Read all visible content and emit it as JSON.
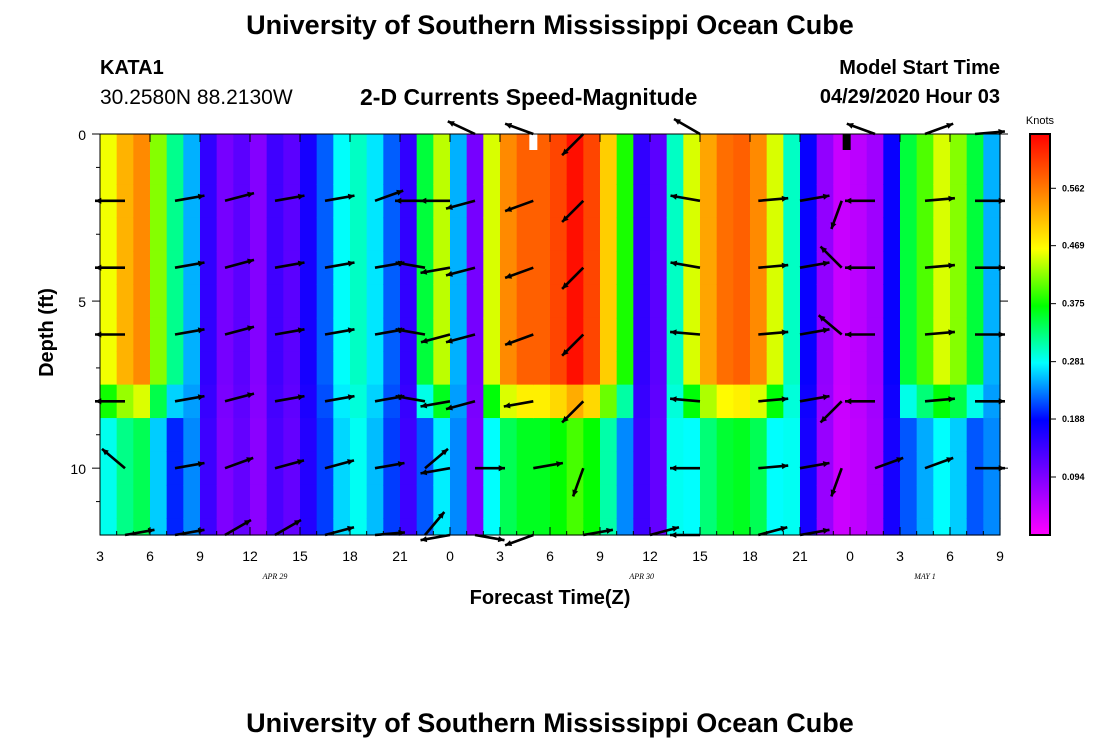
{
  "header": {
    "title": "University of Southern Mississippi Ocean Cube",
    "station_id": "KATA1",
    "station_coords": "30.2580N 88.2130W",
    "chart_title": "2-D Currents Speed-Magnitude",
    "model_label": "Model Start Time",
    "model_time": "04/29/2020 Hour 03"
  },
  "footer": {
    "title": "University of Southern Mississippi Ocean Cube"
  },
  "chart_data": {
    "type": "heatmap",
    "title": "2-D Currents Speed-Magnitude",
    "xlabel": "Forecast Time(Z)",
    "ylabel": "Depth (ft)",
    "x_ticks_hours": [
      0,
      3,
      6,
      9,
      12,
      15,
      18,
      21,
      24,
      27,
      30,
      33,
      36,
      39,
      42,
      45,
      48,
      51,
      54
    ],
    "x_tick_labels": [
      "3",
      "6",
      "9",
      "12",
      "15",
      "18",
      "21",
      "0",
      "3",
      "6",
      "9",
      "12",
      "15",
      "18",
      "21",
      "0",
      "3",
      "6",
      "9"
    ],
    "date_labels": [
      {
        "hour": 10.5,
        "text": "APR 29"
      },
      {
        "hour": 32.5,
        "text": "APR 30"
      },
      {
        "hour": 49.5,
        "text": "MAY 1"
      }
    ],
    "y_ticks": [
      0,
      5,
      10
    ],
    "y_tick_labels": [
      "0",
      "5",
      "10"
    ],
    "xlim_hours": [
      0,
      54
    ],
    "ylim_depth_ft": [
      0,
      12
    ],
    "colorbar": {
      "units": "Knots",
      "ticks": [
        0.094,
        0.188,
        0.281,
        0.375,
        0.469,
        0.562
      ],
      "tick_labels": [
        "0.094",
        "0.188",
        "0.281",
        "0.375",
        "0.469",
        "0.562"
      ],
      "range": [
        0.0,
        0.65
      ],
      "stops": [
        "#ff00ff",
        "#8000ff",
        "#0000ff",
        "#00ffff",
        "#00ff00",
        "#ffff00",
        "#ff8000",
        "#ff0000"
      ]
    },
    "depth_bin_edges_ft": [
      0,
      1.5,
      2.5,
      3.5,
      4.5,
      5.5,
      6.5,
      7.5,
      8.5,
      9.5,
      10.5,
      11.5,
      12
    ],
    "profile_rows": [
      {
        "top_ft": 0,
        "profile": [
          1.0,
          1.0,
          1.0,
          1.0,
          1.0,
          1.0,
          1.0,
          0.82,
          0.62,
          0.45
        ]
      },
      {
        "top_ft": 7.5,
        "profile": [
          0.82,
          0.82,
          0.82,
          0.82,
          0.82,
          0.82,
          0.82,
          0.62,
          0.45,
          0.28
        ]
      },
      {
        "top_ft": 8.5,
        "profile": [
          0.62,
          0.62,
          0.62,
          0.62,
          0.62,
          0.62,
          0.62,
          0.45,
          0.28,
          0.18
        ]
      }
    ],
    "surface_speed_hourly": [
      0.46,
      0.52,
      0.55,
      0.42,
      0.32,
      0.25,
      0.15,
      0.1,
      0.12,
      0.09,
      0.14,
      0.12,
      0.17,
      0.22,
      0.28,
      0.3,
      0.27,
      0.22,
      0.15,
      0.35,
      0.44,
      0.25,
      0.1,
      0.45,
      0.55,
      0.58,
      0.58,
      0.6,
      0.64,
      0.6,
      0.5,
      0.38,
      0.15,
      0.12,
      0.3,
      0.45,
      0.53,
      0.57,
      0.58,
      0.55,
      0.45,
      0.3,
      0.18,
      0.08,
      0.04,
      0.05,
      0.07,
      0.18,
      0.35,
      0.4,
      0.45,
      0.42,
      0.35,
      0.25,
      0.15
    ],
    "vectors": {
      "depths_ft": [
        0,
        2,
        4,
        6,
        8,
        10,
        12
      ],
      "series": [
        {
          "hour": 1.5,
          "dirs_deg": [
            null,
            180,
            180,
            180,
            180,
            140,
            10
          ]
        },
        {
          "hour": 4.5,
          "dirs_deg": [
            null,
            10,
            10,
            10,
            10,
            10,
            10
          ]
        },
        {
          "hour": 7.5,
          "dirs_deg": [
            null,
            15,
            15,
            15,
            15,
            20,
            30
          ]
        },
        {
          "hour": 10.5,
          "dirs_deg": [
            null,
            10,
            10,
            10,
            10,
            15,
            30
          ]
        },
        {
          "hour": 13.5,
          "dirs_deg": [
            null,
            10,
            10,
            10,
            10,
            15,
            15
          ]
        },
        {
          "hour": 16.5,
          "dirs_deg": [
            null,
            20,
            10,
            10,
            10,
            10,
            5
          ]
        },
        {
          "hour": 19.5,
          "dirs_deg": [
            null,
            180,
            170,
            170,
            170,
            40,
            50
          ]
        },
        {
          "hour": 21.0,
          "dirs_deg": [
            null,
            180,
            190,
            195,
            190,
            190,
            190
          ]
        },
        {
          "hour": 22.5,
          "dirs_deg": [
            155,
            195,
            195,
            195,
            195,
            0,
            350
          ]
        },
        {
          "hour": 26.0,
          "dirs_deg": [
            160,
            200,
            200,
            200,
            190,
            10,
            200
          ]
        },
        {
          "hour": 29.0,
          "dirs_deg": [
            225,
            225,
            225,
            225,
            225,
            250,
            10
          ]
        },
        {
          "hour": 33.0,
          "dirs_deg": [
            null,
            null,
            null,
            null,
            null,
            null,
            15
          ]
        },
        {
          "hour": 36.0,
          "dirs_deg": [
            150,
            170,
            170,
            175,
            175,
            180,
            180
          ]
        },
        {
          "hour": 39.5,
          "dirs_deg": [
            null,
            5,
            5,
            5,
            5,
            5,
            15
          ]
        },
        {
          "hour": 42.0,
          "dirs_deg": [
            null,
            10,
            10,
            10,
            10,
            10,
            10
          ]
        },
        {
          "hour": 44.5,
          "dirs_deg": [
            null,
            250,
            135,
            140,
            225,
            250,
            null
          ]
        },
        {
          "hour": 46.5,
          "dirs_deg": [
            160,
            180,
            180,
            180,
            180,
            20,
            null
          ]
        },
        {
          "hour": 49.5,
          "dirs_deg": [
            20,
            5,
            5,
            5,
            5,
            20,
            null
          ]
        },
        {
          "hour": 52.5,
          "dirs_deg": [
            5,
            0,
            0,
            0,
            0,
            0,
            null
          ]
        }
      ]
    },
    "missing_markers": [
      {
        "hour": 26.0,
        "depth_ft": 0,
        "color": "#ffffff"
      },
      {
        "hour": 44.8,
        "depth_ft": 0,
        "color": "#000000"
      }
    ]
  }
}
